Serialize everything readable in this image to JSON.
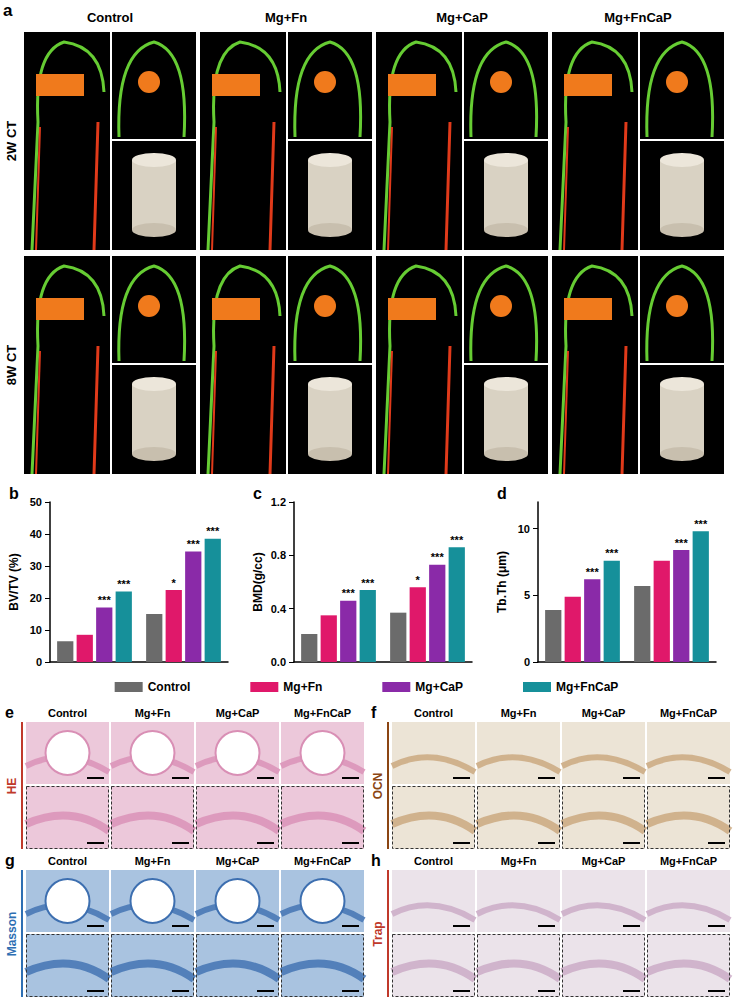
{
  "figure": {
    "panel_a": {
      "letter": "a",
      "columns": [
        "Control",
        "Mg+Fn",
        "Mg+CaP",
        "Mg+FnCaP"
      ],
      "rows": [
        "2W CT",
        "8W CT"
      ]
    },
    "histology": [
      {
        "letter": "e",
        "stain": "HE",
        "columns": [
          "Control",
          "Mg+Fn",
          "Mg+CaP",
          "Mg+FnCaP"
        ]
      },
      {
        "letter": "f",
        "stain": "OCN",
        "columns": [
          "Control",
          "Mg+Fn",
          "Mg+CaP",
          "Mg+FnCaP"
        ]
      },
      {
        "letter": "g",
        "stain": "Masson",
        "columns": [
          "Control",
          "Mg+Fn",
          "Mg+CaP",
          "Mg+FnCaP"
        ]
      },
      {
        "letter": "h",
        "stain": "Trap",
        "columns": [
          "Control",
          "Mg+Fn",
          "Mg+CaP",
          "Mg+FnCaP"
        ]
      }
    ]
  },
  "chart_data": [
    {
      "letter": "b",
      "type": "bar",
      "y_label": "BV/TV (%)",
      "categories": [
        null,
        null
      ],
      "ylim": [
        0,
        50
      ],
      "yticks": [
        0,
        10,
        20,
        30,
        40,
        50
      ],
      "grid": false,
      "legend": "bottom",
      "series": [
        {
          "name": "Control",
          "color": "#6b6b6b",
          "values": [
            6.5,
            15
          ],
          "significance": [
            null,
            null
          ]
        },
        {
          "name": "Mg+Fn",
          "color": "#e0186a",
          "values": [
            8.5,
            22.5
          ],
          "significance": [
            null,
            "*"
          ]
        },
        {
          "name": "Mg+CaP",
          "color": "#8a2aa8",
          "values": [
            17,
            34.5
          ],
          "significance": [
            "***",
            "***"
          ]
        },
        {
          "name": "Mg+FnCaP",
          "color": "#16909a",
          "values": [
            22,
            38.5
          ],
          "significance": [
            "***",
            "***"
          ]
        }
      ]
    },
    {
      "letter": "c",
      "type": "bar",
      "y_label": "BMD(g/cc)",
      "categories": [
        null,
        null
      ],
      "ylim": [
        0,
        1.2
      ],
      "yticks": [
        {
          "value": 0,
          "label": "0.0"
        },
        0.4,
        0.8,
        1.2
      ],
      "grid": false,
      "legend": "bottom",
      "series": [
        {
          "name": "Control",
          "color": "#6b6b6b",
          "values": [
            0.21,
            0.37
          ],
          "significance": [
            null,
            null
          ]
        },
        {
          "name": "Mg+Fn",
          "color": "#e0186a",
          "values": [
            0.35,
            0.56
          ],
          "significance": [
            null,
            "*"
          ]
        },
        {
          "name": "Mg+CaP",
          "color": "#8a2aa8",
          "values": [
            0.46,
            0.73
          ],
          "significance": [
            "***",
            "***"
          ]
        },
        {
          "name": "Mg+FnCaP",
          "color": "#16909a",
          "values": [
            0.54,
            0.86
          ],
          "significance": [
            "***",
            "***"
          ]
        }
      ]
    },
    {
      "letter": "d",
      "type": "bar",
      "y_label": "Tb.Th (μm)",
      "categories": [
        null,
        null
      ],
      "ylim": [
        0,
        12
      ],
      "yticks": [
        0,
        5,
        10
      ],
      "grid": false,
      "legend": "bottom",
      "series": [
        {
          "name": "Control",
          "color": "#6b6b6b",
          "values": [
            3.9,
            5.7
          ],
          "significance": [
            null,
            null
          ]
        },
        {
          "name": "Mg+Fn",
          "color": "#e0186a",
          "values": [
            4.9,
            7.6
          ],
          "significance": [
            null,
            null
          ]
        },
        {
          "name": "Mg+CaP",
          "color": "#8a2aa8",
          "values": [
            6.2,
            8.4
          ],
          "significance": [
            "***",
            "***"
          ]
        },
        {
          "name": "Mg+FnCaP",
          "color": "#16909a",
          "values": [
            7.6,
            9.8
          ],
          "significance": [
            "***",
            "***"
          ]
        }
      ]
    }
  ]
}
